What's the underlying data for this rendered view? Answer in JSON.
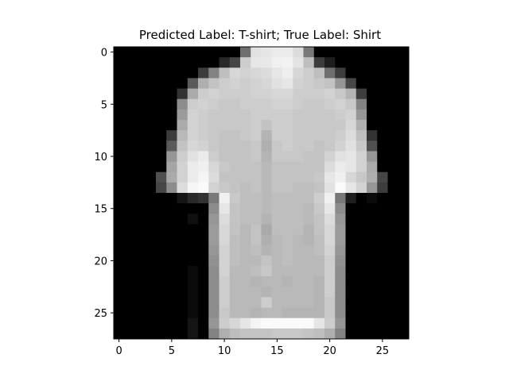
{
  "chart_data": {
    "type": "heatmap",
    "title": "Predicted Label: T-shirt; True Label: Shirt",
    "colormap": "gray",
    "value_range": [
      0,
      255
    ],
    "xlim": [
      -0.5,
      27.5
    ],
    "ylim": [
      27.5,
      -0.5
    ],
    "x_ticks": [
      0,
      5,
      10,
      15,
      20,
      25
    ],
    "y_ticks": [
      0,
      5,
      10,
      15,
      20,
      25
    ],
    "x_tick_labels": [
      "0",
      "5",
      "10",
      "15",
      "20",
      "25"
    ],
    "y_tick_labels": [
      "0",
      "5",
      "10",
      "15",
      "20",
      "25"
    ],
    "pixels": [
      [
        0,
        0,
        0,
        0,
        0,
        0,
        0,
        0,
        0,
        0,
        0,
        0,
        110,
        225,
        230,
        235,
        235,
        220,
        120,
        0,
        0,
        0,
        0,
        0,
        0,
        0,
        0,
        0
      ],
      [
        0,
        0,
        0,
        0,
        0,
        0,
        0,
        0,
        0,
        0,
        40,
        70,
        205,
        230,
        232,
        240,
        242,
        228,
        190,
        60,
        30,
        0,
        0,
        0,
        0,
        0,
        0,
        0
      ],
      [
        0,
        0,
        0,
        0,
        0,
        0,
        0,
        0,
        60,
        130,
        190,
        215,
        210,
        215,
        220,
        230,
        238,
        215,
        205,
        190,
        110,
        60,
        0,
        0,
        0,
        0,
        0,
        0
      ],
      [
        0,
        0,
        0,
        0,
        0,
        0,
        0,
        90,
        175,
        195,
        205,
        210,
        205,
        210,
        215,
        225,
        230,
        210,
        205,
        200,
        195,
        150,
        70,
        0,
        0,
        0,
        0,
        0
      ],
      [
        0,
        0,
        0,
        0,
        0,
        0,
        50,
        170,
        205,
        210,
        205,
        205,
        205,
        210,
        210,
        215,
        215,
        205,
        205,
        205,
        210,
        200,
        180,
        60,
        0,
        0,
        0,
        0
      ],
      [
        0,
        0,
        0,
        0,
        0,
        0,
        140,
        205,
        210,
        205,
        200,
        200,
        205,
        205,
        205,
        210,
        210,
        205,
        200,
        200,
        205,
        210,
        200,
        130,
        0,
        0,
        0,
        0
      ],
      [
        0,
        0,
        0,
        0,
        0,
        0,
        155,
        210,
        205,
        200,
        200,
        200,
        200,
        205,
        205,
        205,
        205,
        200,
        200,
        200,
        200,
        205,
        210,
        150,
        0,
        0,
        0,
        0
      ],
      [
        0,
        0,
        0,
        0,
        0,
        0,
        170,
        210,
        205,
        200,
        200,
        200,
        200,
        205,
        195,
        205,
        205,
        200,
        200,
        200,
        200,
        200,
        215,
        175,
        0,
        0,
        0,
        0
      ],
      [
        0,
        0,
        0,
        0,
        0,
        60,
        185,
        210,
        205,
        200,
        195,
        195,
        200,
        205,
        180,
        205,
        205,
        200,
        200,
        200,
        200,
        205,
        220,
        190,
        50,
        0,
        0,
        0
      ],
      [
        0,
        0,
        0,
        0,
        0,
        90,
        195,
        215,
        210,
        200,
        195,
        195,
        195,
        200,
        175,
        200,
        205,
        200,
        200,
        195,
        200,
        210,
        225,
        200,
        80,
        0,
        0,
        0
      ],
      [
        0,
        0,
        0,
        0,
        0,
        150,
        205,
        225,
        235,
        205,
        195,
        195,
        195,
        200,
        180,
        200,
        200,
        200,
        195,
        195,
        210,
        225,
        230,
        210,
        150,
        0,
        0,
        0
      ],
      [
        0,
        0,
        0,
        0,
        0,
        165,
        210,
        235,
        240,
        215,
        200,
        195,
        195,
        195,
        185,
        195,
        195,
        195,
        195,
        195,
        220,
        235,
        230,
        210,
        170,
        0,
        0,
        0
      ],
      [
        0,
        0,
        0,
        0,
        80,
        170,
        210,
        235,
        245,
        220,
        195,
        195,
        195,
        195,
        185,
        195,
        195,
        195,
        195,
        200,
        230,
        240,
        215,
        200,
        175,
        70,
        0,
        0
      ],
      [
        0,
        0,
        0,
        0,
        70,
        140,
        220,
        245,
        250,
        210,
        200,
        195,
        190,
        195,
        185,
        195,
        195,
        190,
        190,
        195,
        225,
        250,
        230,
        210,
        150,
        60,
        0,
        0
      ],
      [
        0,
        0,
        0,
        0,
        0,
        0,
        20,
        40,
        50,
        120,
        240,
        200,
        190,
        190,
        185,
        190,
        190,
        190,
        190,
        205,
        240,
        120,
        30,
        0,
        10,
        0,
        0,
        0
      ],
      [
        0,
        0,
        0,
        0,
        0,
        0,
        0,
        0,
        0,
        140,
        230,
        195,
        190,
        190,
        185,
        190,
        190,
        190,
        185,
        200,
        230,
        140,
        0,
        0,
        0,
        0,
        0,
        0
      ],
      [
        0,
        0,
        0,
        0,
        0,
        0,
        0,
        15,
        0,
        150,
        220,
        195,
        190,
        190,
        180,
        190,
        190,
        190,
        185,
        195,
        220,
        150,
        0,
        0,
        0,
        0,
        0,
        0
      ],
      [
        0,
        0,
        0,
        0,
        0,
        0,
        0,
        0,
        0,
        155,
        215,
        195,
        185,
        195,
        170,
        190,
        190,
        190,
        180,
        195,
        215,
        155,
        0,
        0,
        0,
        0,
        0,
        0
      ],
      [
        0,
        0,
        0,
        0,
        0,
        0,
        0,
        0,
        0,
        155,
        215,
        190,
        185,
        195,
        175,
        185,
        190,
        185,
        180,
        190,
        215,
        155,
        0,
        0,
        0,
        0,
        0,
        0
      ],
      [
        0,
        0,
        0,
        0,
        0,
        0,
        0,
        0,
        0,
        150,
        210,
        190,
        185,
        190,
        180,
        185,
        190,
        185,
        185,
        190,
        210,
        150,
        0,
        0,
        0,
        0,
        0,
        0
      ],
      [
        0,
        0,
        0,
        0,
        0,
        0,
        0,
        0,
        0,
        145,
        210,
        190,
        185,
        185,
        195,
        185,
        190,
        185,
        185,
        185,
        205,
        145,
        0,
        0,
        0,
        0,
        0,
        0
      ],
      [
        0,
        0,
        0,
        0,
        0,
        0,
        0,
        10,
        0,
        140,
        210,
        185,
        185,
        190,
        200,
        185,
        185,
        185,
        185,
        185,
        205,
        140,
        0,
        0,
        0,
        0,
        0,
        0
      ],
      [
        0,
        0,
        0,
        0,
        0,
        0,
        0,
        10,
        0,
        140,
        205,
        185,
        185,
        180,
        185,
        185,
        180,
        185,
        185,
        180,
        205,
        140,
        0,
        0,
        0,
        0,
        0,
        0
      ],
      [
        0,
        0,
        0,
        0,
        0,
        0,
        0,
        10,
        0,
        140,
        205,
        185,
        185,
        185,
        180,
        185,
        185,
        185,
        185,
        180,
        205,
        140,
        0,
        0,
        0,
        0,
        0,
        0
      ],
      [
        0,
        0,
        0,
        0,
        0,
        0,
        0,
        10,
        0,
        140,
        205,
        185,
        185,
        185,
        205,
        185,
        185,
        185,
        185,
        180,
        200,
        140,
        0,
        0,
        0,
        0,
        0,
        0
      ],
      [
        0,
        0,
        0,
        0,
        0,
        0,
        0,
        10,
        0,
        140,
        200,
        185,
        185,
        180,
        185,
        185,
        180,
        180,
        180,
        180,
        200,
        140,
        0,
        0,
        0,
        0,
        0,
        0
      ],
      [
        0,
        0,
        0,
        0,
        0,
        0,
        0,
        20,
        0,
        150,
        205,
        215,
        230,
        245,
        250,
        250,
        250,
        250,
        250,
        230,
        205,
        150,
        0,
        0,
        0,
        0,
        0,
        0
      ],
      [
        0,
        0,
        0,
        0,
        0,
        0,
        0,
        20,
        0,
        130,
        175,
        190,
        195,
        195,
        195,
        200,
        200,
        200,
        195,
        190,
        175,
        130,
        0,
        0,
        0,
        0,
        0,
        0
      ]
    ]
  }
}
